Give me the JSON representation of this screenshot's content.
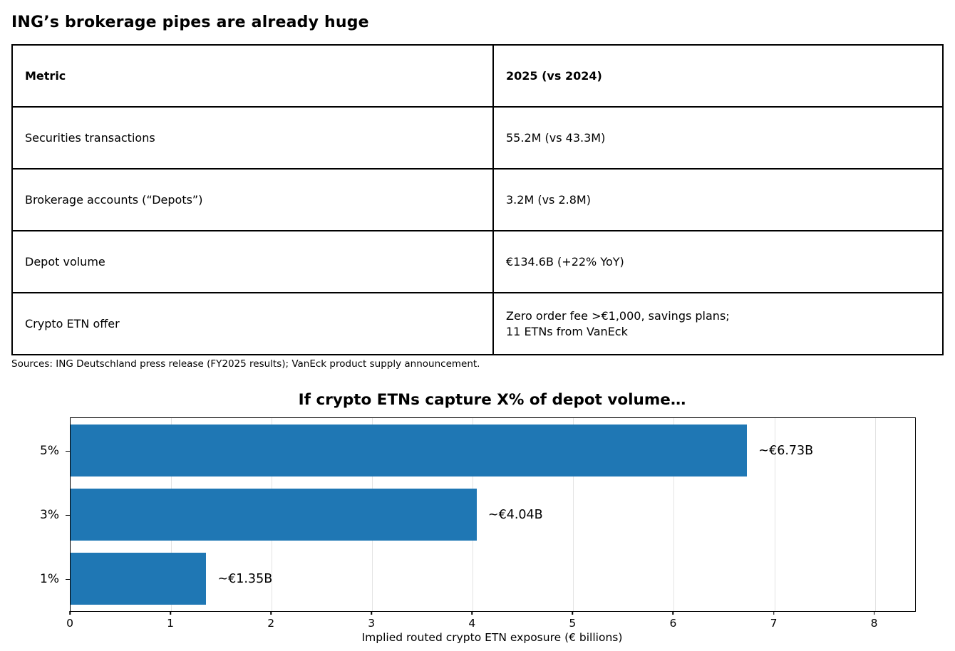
{
  "page_title": "ING’s brokerage pipes are already huge",
  "table": {
    "headers": [
      "Metric",
      "2025 (vs 2024)"
    ],
    "rows": [
      [
        "Securities transactions",
        "55.2M (vs 43.3M)"
      ],
      [
        "Brokerage accounts (“Depots”)",
        "3.2M (vs 2.8M)"
      ],
      [
        "Depot volume",
        "€134.6B (+22% YoY)"
      ],
      [
        "Crypto ETN offer",
        "Zero order fee >€1,000, savings plans;\n11 ETNs from VanEck"
      ]
    ]
  },
  "sources_note": "Sources: ING Deutschland press release (FY2025 results); VanEck product supply announcement.",
  "chart_data": {
    "type": "bar",
    "orientation": "horizontal",
    "title": "If crypto ETNs capture X% of depot volume…",
    "categories": [
      "5%",
      "3%",
      "1%"
    ],
    "values": [
      6.73,
      4.04,
      1.35
    ],
    "bar_labels": [
      "~€6.73B",
      "~€4.04B",
      "~€1.35B"
    ],
    "xlabel": "Implied routed crypto ETN exposure (€ billions)",
    "ylabel": "",
    "xlim": [
      0,
      8.4
    ],
    "xticks": [
      0,
      1,
      2,
      3,
      4,
      5,
      6,
      7,
      8
    ],
    "grid": true,
    "legend": null,
    "bar_color": "#1f77b4",
    "grid_color": "#e3e3e3"
  }
}
